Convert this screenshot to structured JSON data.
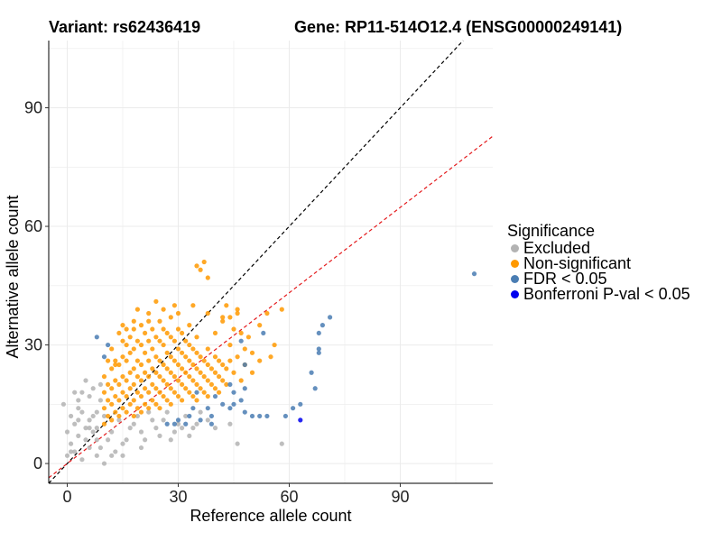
{
  "title_left": "Variant: rs62436419",
  "title_right": "Gene: RP11-514O12.4 (ENSG00000249141)",
  "chart_data": {
    "type": "scatter",
    "xlabel": "Reference allele count",
    "ylabel": "Alternative allele count",
    "xlim": [
      -5,
      115
    ],
    "ylim": [
      -5,
      107
    ],
    "xticks": [
      0,
      30,
      60,
      90
    ],
    "yticks": [
      0,
      30,
      60,
      90
    ],
    "grid": true,
    "reference_lines": [
      {
        "name": "identity",
        "slope": 1,
        "intercept": 0,
        "color": "#000000",
        "style": "dashed"
      },
      {
        "name": "fit",
        "slope": 0.72,
        "intercept": 0,
        "color": "#e41a1c",
        "style": "dashed"
      }
    ],
    "legend": {
      "title": "Significance",
      "entries": [
        {
          "label": "Excluded",
          "color": "#b3b3b3"
        },
        {
          "label": "Non-significant",
          "color": "#ff9900"
        },
        {
          "label": "FDR < 0.05",
          "color": "#4a7db3"
        },
        {
          "label": "Bonferroni P-val < 0.05",
          "color": "#0000ee"
        }
      ]
    },
    "series": [
      {
        "name": "Excluded",
        "color": "#b3b3b3",
        "points": [
          [
            0,
            2
          ],
          [
            1,
            5
          ],
          [
            2,
            3
          ],
          [
            3,
            7
          ],
          [
            4,
            1
          ],
          [
            5,
            9
          ],
          [
            6,
            4
          ],
          [
            7,
            12
          ],
          [
            8,
            6
          ],
          [
            9,
            16
          ],
          [
            2,
            10
          ],
          [
            3,
            14
          ],
          [
            4,
            18
          ],
          [
            5,
            6
          ],
          [
            6,
            11
          ],
          [
            7,
            8
          ],
          [
            8,
            2
          ],
          [
            9,
            4
          ],
          [
            1,
            12
          ],
          [
            0,
            8
          ],
          [
            -1,
            15
          ],
          [
            4,
            13
          ],
          [
            6,
            17
          ],
          [
            8,
            13
          ],
          [
            10,
            0
          ],
          [
            12,
            8
          ],
          [
            14,
            11
          ],
          [
            16,
            6
          ],
          [
            18,
            10
          ],
          [
            20,
            8
          ],
          [
            22,
            13
          ],
          [
            24,
            9
          ],
          [
            26,
            11
          ],
          [
            28,
            6
          ],
          [
            30,
            10
          ],
          [
            32,
            12
          ],
          [
            34,
            9
          ],
          [
            36,
            13
          ],
          [
            38,
            11
          ],
          [
            40,
            9
          ],
          [
            44,
            10
          ],
          [
            46,
            5
          ],
          [
            58,
            5
          ],
          [
            9,
            20
          ],
          [
            5,
            21
          ],
          [
            2,
            18
          ],
          [
            13,
            3
          ],
          [
            15,
            5
          ],
          [
            17,
            9
          ],
          [
            19,
            12
          ],
          [
            21,
            6
          ],
          [
            23,
            11
          ],
          [
            25,
            7
          ],
          [
            27,
            13
          ],
          [
            29,
            8
          ],
          [
            31,
            9
          ],
          [
            33,
            7
          ],
          [
            35,
            10
          ],
          [
            7,
            19
          ],
          [
            3,
            11
          ],
          [
            11,
            6
          ],
          [
            10,
            12
          ],
          [
            12,
            2
          ],
          [
            15,
            2
          ],
          [
            20,
            4
          ],
          [
            3,
            16
          ],
          [
            6,
            9
          ],
          [
            8,
            9
          ],
          [
            1,
            3
          ]
        ]
      },
      {
        "name": "Non-significant",
        "color": "#ff9900",
        "points": [
          [
            10,
            10
          ],
          [
            10,
            14
          ],
          [
            10,
            18
          ],
          [
            10,
            22
          ],
          [
            11,
            12
          ],
          [
            11,
            16
          ],
          [
            11,
            20
          ],
          [
            12,
            11
          ],
          [
            12,
            15
          ],
          [
            12,
            19
          ],
          [
            12,
            24
          ],
          [
            13,
            13
          ],
          [
            13,
            17
          ],
          [
            13,
            21
          ],
          [
            13,
            26
          ],
          [
            14,
            12
          ],
          [
            14,
            16
          ],
          [
            14,
            20
          ],
          [
            14,
            25
          ],
          [
            15,
            14
          ],
          [
            15,
            18
          ],
          [
            15,
            22
          ],
          [
            15,
            27
          ],
          [
            15,
            31
          ],
          [
            16,
            13
          ],
          [
            16,
            17
          ],
          [
            16,
            21
          ],
          [
            16,
            26
          ],
          [
            16,
            30
          ],
          [
            17,
            15
          ],
          [
            17,
            19
          ],
          [
            17,
            23
          ],
          [
            17,
            28
          ],
          [
            17,
            32
          ],
          [
            18,
            12
          ],
          [
            18,
            16
          ],
          [
            18,
            20
          ],
          [
            18,
            24
          ],
          [
            18,
            29
          ],
          [
            18,
            34
          ],
          [
            19,
            14
          ],
          [
            19,
            18
          ],
          [
            19,
            22
          ],
          [
            19,
            26
          ],
          [
            19,
            31
          ],
          [
            20,
            13
          ],
          [
            20,
            17
          ],
          [
            20,
            21
          ],
          [
            20,
            25
          ],
          [
            20,
            30
          ],
          [
            20,
            35
          ],
          [
            21,
            15
          ],
          [
            21,
            19
          ],
          [
            21,
            23
          ],
          [
            21,
            28
          ],
          [
            21,
            33
          ],
          [
            22,
            14
          ],
          [
            22,
            18
          ],
          [
            22,
            22
          ],
          [
            22,
            26
          ],
          [
            22,
            31
          ],
          [
            22,
            36
          ],
          [
            23,
            16
          ],
          [
            23,
            20
          ],
          [
            23,
            24
          ],
          [
            23,
            29
          ],
          [
            23,
            34
          ],
          [
            24,
            15
          ],
          [
            24,
            19
          ],
          [
            24,
            23
          ],
          [
            24,
            27
          ],
          [
            24,
            32
          ],
          [
            25,
            14
          ],
          [
            25,
            18
          ],
          [
            25,
            22
          ],
          [
            25,
            26
          ],
          [
            25,
            31
          ],
          [
            25,
            36
          ],
          [
            26,
            17
          ],
          [
            26,
            21
          ],
          [
            26,
            25
          ],
          [
            26,
            30
          ],
          [
            26,
            34
          ],
          [
            27,
            16
          ],
          [
            27,
            20
          ],
          [
            27,
            24
          ],
          [
            27,
            28
          ],
          [
            27,
            33
          ],
          [
            28,
            15
          ],
          [
            28,
            19
          ],
          [
            28,
            23
          ],
          [
            28,
            27
          ],
          [
            28,
            32
          ],
          [
            28,
            37
          ],
          [
            29,
            18
          ],
          [
            29,
            22
          ],
          [
            29,
            26
          ],
          [
            29,
            31
          ],
          [
            30,
            17
          ],
          [
            30,
            21
          ],
          [
            30,
            25
          ],
          [
            30,
            29
          ],
          [
            30,
            34
          ],
          [
            31,
            16
          ],
          [
            31,
            20
          ],
          [
            31,
            24
          ],
          [
            31,
            28
          ],
          [
            31,
            33
          ],
          [
            32,
            19
          ],
          [
            32,
            23
          ],
          [
            32,
            27
          ],
          [
            32,
            31
          ],
          [
            33,
            18
          ],
          [
            33,
            22
          ],
          [
            33,
            26
          ],
          [
            33,
            30
          ],
          [
            33,
            35
          ],
          [
            34,
            17
          ],
          [
            34,
            21
          ],
          [
            34,
            25
          ],
          [
            34,
            29
          ],
          [
            35,
            16
          ],
          [
            35,
            20
          ],
          [
            35,
            24
          ],
          [
            35,
            28
          ],
          [
            35,
            32
          ],
          [
            36,
            19
          ],
          [
            36,
            23
          ],
          [
            36,
            27
          ],
          [
            37,
            18
          ],
          [
            37,
            22
          ],
          [
            37,
            26
          ],
          [
            38,
            17
          ],
          [
            38,
            21
          ],
          [
            38,
            25
          ],
          [
            38,
            29
          ],
          [
            39,
            20
          ],
          [
            39,
            24
          ],
          [
            40,
            19
          ],
          [
            40,
            23
          ],
          [
            40,
            27
          ],
          [
            40,
            33
          ],
          [
            41,
            18
          ],
          [
            41,
            22
          ],
          [
            41,
            26
          ],
          [
            42,
            21
          ],
          [
            42,
            25
          ],
          [
            42,
            37
          ],
          [
            43,
            20
          ],
          [
            43,
            24
          ],
          [
            44,
            26
          ],
          [
            44,
            30
          ],
          [
            45,
            23
          ],
          [
            45,
            34
          ],
          [
            46,
            27
          ],
          [
            46,
            38
          ],
          [
            47,
            21
          ],
          [
            47,
            33
          ],
          [
            48,
            25
          ],
          [
            48,
            29
          ],
          [
            49,
            32
          ],
          [
            50,
            23
          ],
          [
            50,
            28
          ],
          [
            52,
            26
          ],
          [
            52,
            35
          ],
          [
            54,
            38
          ],
          [
            55,
            27
          ],
          [
            56,
            30
          ],
          [
            58,
            39
          ],
          [
            44,
            37
          ],
          [
            46,
            39
          ],
          [
            43,
            40
          ],
          [
            42,
            36
          ],
          [
            38,
            38
          ],
          [
            34,
            40
          ],
          [
            30,
            38
          ],
          [
            26,
            39
          ],
          [
            22,
            38
          ],
          [
            18,
            36
          ],
          [
            14,
            33
          ],
          [
            12,
            29
          ],
          [
            11,
            26
          ],
          [
            35,
            50
          ],
          [
            36,
            49
          ],
          [
            37,
            51
          ],
          [
            38,
            47
          ],
          [
            19,
            39
          ],
          [
            24,
            41
          ],
          [
            29,
            40
          ],
          [
            13,
            25
          ],
          [
            15,
            35
          ],
          [
            16,
            34
          ]
        ]
      },
      {
        "name": "FDR < 0.05",
        "color": "#4a7db3",
        "points": [
          [
            110,
            48
          ],
          [
            71,
            37
          ],
          [
            69,
            35
          ],
          [
            68,
            33
          ],
          [
            68,
            28
          ],
          [
            68,
            29
          ],
          [
            66,
            23
          ],
          [
            67,
            19
          ],
          [
            63,
            15
          ],
          [
            61,
            14
          ],
          [
            59,
            12
          ],
          [
            54,
            12
          ],
          [
            52,
            12
          ],
          [
            50,
            12
          ],
          [
            48,
            13
          ],
          [
            47,
            16
          ],
          [
            44,
            14
          ],
          [
            45,
            18
          ],
          [
            48,
            19
          ],
          [
            48,
            25
          ],
          [
            47,
            31
          ],
          [
            53,
            33
          ],
          [
            44,
            20
          ],
          [
            45,
            15
          ],
          [
            42,
            15
          ],
          [
            40,
            17
          ],
          [
            39,
            12
          ],
          [
            39,
            10
          ],
          [
            38,
            14
          ],
          [
            36,
            11
          ],
          [
            35,
            18
          ],
          [
            33,
            12
          ],
          [
            34,
            14
          ],
          [
            32,
            10
          ],
          [
            30,
            11
          ],
          [
            29,
            10
          ],
          [
            27,
            10
          ],
          [
            8,
            32
          ],
          [
            10,
            27
          ],
          [
            11,
            30
          ]
        ]
      },
      {
        "name": "Bonferroni P-val < 0.05",
        "color": "#0000ee",
        "points": [
          [
            63,
            11
          ]
        ]
      }
    ]
  }
}
